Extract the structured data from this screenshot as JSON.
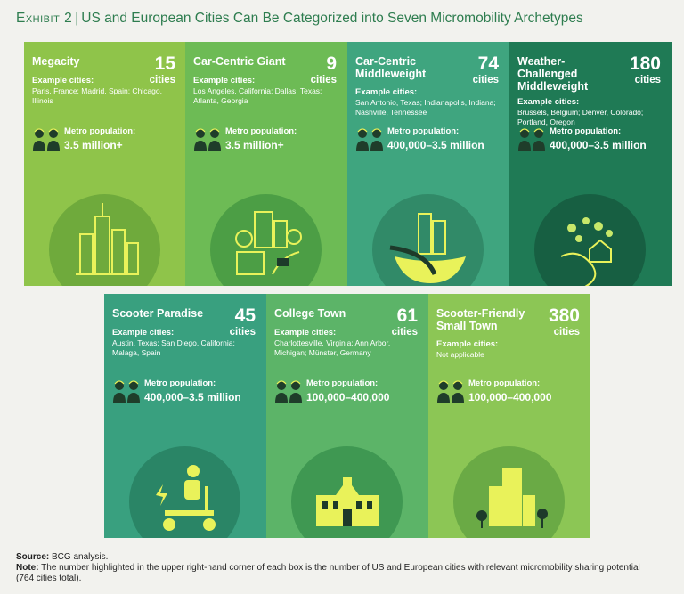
{
  "header": {
    "exhibit_label": "Exhibit 2",
    "separator": "|",
    "title": "US and European Cities Can Be Categorized into Seven Micromobility Archetypes"
  },
  "cards": [
    {
      "name": "Megacity",
      "count": "15",
      "count_unit": "cities",
      "example_label": "Example cities:",
      "example_cities": "Paris, France; Madrid, Spain; Chicago, Illinois",
      "pop_label": "Metro population:",
      "pop_value": "3.5 million+",
      "bg": "#8fc44a",
      "circle": "#6faa3c",
      "icon": "skyscrapers-icon"
    },
    {
      "name": "Car-Centric Giant",
      "count": "9",
      "count_unit": "cities",
      "example_label": "Example cities:",
      "example_cities": "Los Angeles, California; Dallas, Texas; Atlanta, Georgia",
      "pop_label": "Metro population:",
      "pop_value": "3.5 million+",
      "bg": "#6dbb55",
      "circle": "#4c9e45",
      "icon": "city-road-car-icon"
    },
    {
      "name": "Car-Centric Middleweight",
      "count": "74",
      "count_unit": "cities",
      "example_label": "Example cities:",
      "example_cities": "San Antonio, Texas; Indianapolis, Indiana; Nashville, Tennessee",
      "pop_label": "Metro population:",
      "pop_value": "400,000–3.5 million",
      "bg": "#3fa57f",
      "circle": "#318a68",
      "icon": "city-highway-icon"
    },
    {
      "name": "Weather-Challenged Middleweight",
      "count": "180",
      "count_unit": "cities",
      "example_label": "Example cities:",
      "example_cities": "Brussels, Belgium; Denver, Colorado; Portland, Oregon",
      "pop_label": "Metro population:",
      "pop_value": "400,000–3.5 million",
      "bg": "#1f7a55",
      "circle": "#175f42",
      "icon": "house-weather-icon"
    },
    {
      "name": "Scooter Paradise",
      "count": "45",
      "count_unit": "cities",
      "example_label": "Example cities:",
      "example_cities": "Austin, Texas; San Diego, California; Malaga, Spain",
      "pop_label": "Metro population:",
      "pop_value": "400,000–3.5 million",
      "bg": "#39a07f",
      "circle": "#2a8566",
      "icon": "scooter-rider-icon"
    },
    {
      "name": "College Town",
      "count": "61",
      "count_unit": "cities",
      "example_label": "Example cities:",
      "example_cities": "Charlottesville, Virginia; Ann Arbor, Michigan; Münster, Germany",
      "pop_label": "Metro population:",
      "pop_value": "100,000–400,000",
      "bg": "#5cb468",
      "circle": "#3f9852",
      "icon": "college-building-icon"
    },
    {
      "name": "Scooter-Friendly Small Town",
      "count": "380",
      "count_unit": "cities",
      "example_label": "Example cities:",
      "example_cities": "Not applicable",
      "pop_label": "Metro population:",
      "pop_value": "100,000–400,000",
      "bg": "#8cc655",
      "circle": "#6aaa45",
      "icon": "small-town-scooter-icon"
    }
  ],
  "footer": {
    "source_label": "Source:",
    "source_text": "BCG analysis.",
    "note_label": "Note:",
    "note_text": "The number highlighted in the upper right-hand corner of each box is the number of US and European cities with relevant micromobility sharing potential (764 cities total)."
  }
}
